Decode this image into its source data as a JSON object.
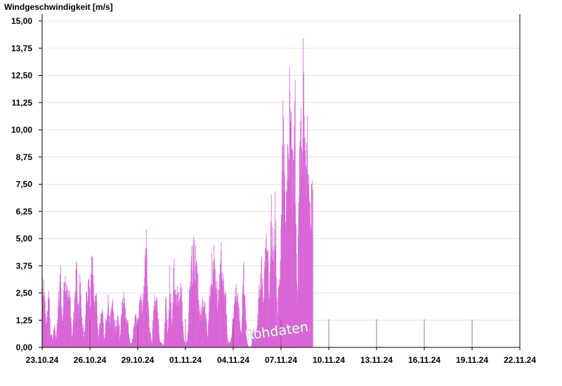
{
  "chart_data": {
    "type": "bar",
    "title": "Windgeschwindigkeit [m/s]",
    "xlabel": "",
    "ylabel": "Windgeschwindigkeit [m/s]",
    "ylim": [
      0,
      15
    ],
    "grid": true,
    "y_ticks": [
      "0,00",
      "1,25",
      "2,50",
      "3,75",
      "5,00",
      "6,25",
      "7,50",
      "8,75",
      "10,00",
      "11,25",
      "12,50",
      "13,75",
      "15,00"
    ],
    "x_ticks": [
      "23.10.24",
      "26.10.24",
      "29.10.24",
      "01.11.24",
      "04.11.24",
      "07.11.24",
      "10.11.24",
      "13.11.24",
      "16.11.24",
      "19.11.24",
      "22.11.24"
    ],
    "x_range": [
      "23.10.24",
      "22.11.24"
    ],
    "series": [
      {
        "color": "#d966d6",
        "resolution": "3h",
        "x": "days starting 23.10.24",
        "values": [
          3.9,
          2.6,
          1.2,
          3.4,
          0.9,
          0.4,
          1.1,
          0.6,
          2.3,
          4.2,
          1.7,
          3.6,
          2.8,
          3.5,
          2.2,
          0.3,
          2.2,
          4.6,
          2.1,
          3.6,
          1.4,
          0.6,
          2.5,
          3.8,
          2.5,
          4.8,
          1.9,
          3.1,
          0.4,
          1.6,
          2.7,
          0.3,
          1.6,
          2.4,
          1.3,
          2.8,
          1.4,
          1.1,
          1.9,
          0.5,
          2.2,
          2.9,
          1.4,
          1.2,
          0.2,
          0.3,
          1.2,
          1.6,
          1.3,
          2.6,
          2.1,
          2.7,
          5.8,
          2.4,
          1.0,
          0.2,
          2.3,
          2.9,
          1.8,
          0.3,
          0.2,
          0.1,
          2.6,
          0.6,
          3.6,
          1.2,
          4.2,
          2.3,
          2.8,
          3.0,
          2.7,
          0.5,
          0.0,
          0.7,
          3.0,
          4.5,
          5.0,
          4.7,
          3.6,
          1.8,
          2.0,
          2.5,
          1.8,
          0.6,
          2.6,
          4.2,
          4.8,
          4.3,
          2.6,
          3.3,
          5.0,
          3.1,
          2.8,
          0.4,
          0.2,
          0.6,
          1.6,
          3.6,
          2.9,
          1.7,
          0.6,
          4.2,
          1.9,
          0.2,
          0.0,
          0.1,
          1.1,
          0.4,
          1.3,
          3.2,
          4.4,
          2.7,
          4.8,
          6.0,
          3.0,
          6.8,
          4.2,
          7.6,
          1.5,
          3.9,
          6.5,
          12.2,
          7.0,
          10.0,
          12.9,
          11.5,
          8.4,
          12.4,
          1.9,
          8.9,
          12.4,
          13.6,
          9.2,
          11.0,
          6.6,
          8.4
        ]
      }
    ],
    "annotations": [
      "Rohdaten"
    ]
  }
}
